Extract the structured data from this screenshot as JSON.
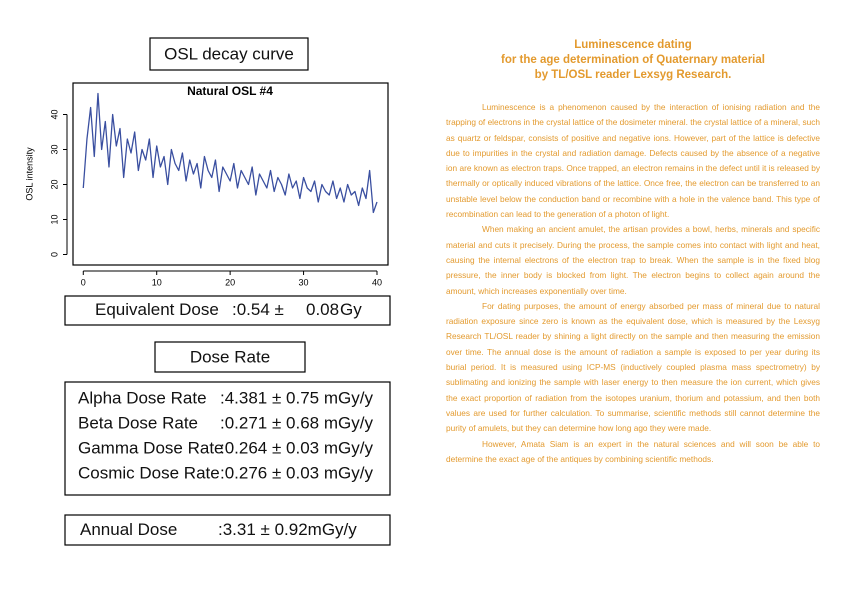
{
  "chart_data": {
    "type": "line",
    "title": "Natural OSL #4",
    "y_label": "OSL intensity",
    "color": "#3a4fa0",
    "x": [
      0,
      0.5,
      1,
      1.5,
      2,
      2.5,
      3,
      3.5,
      4,
      4.5,
      5,
      5.5,
      6,
      6.5,
      7,
      7.5,
      8,
      8.5,
      9,
      9.5,
      10,
      10.5,
      11,
      11.5,
      12,
      12.5,
      13,
      13.5,
      14,
      14.5,
      15,
      15.5,
      16,
      16.5,
      17,
      17.5,
      18,
      18.5,
      19,
      19.5,
      20,
      20.5,
      21,
      21.5,
      22,
      22.5,
      23,
      23.5,
      24,
      24.5,
      25,
      25.5,
      26,
      26.5,
      27,
      27.5,
      28,
      28.5,
      29,
      29.5,
      30,
      30.5,
      31,
      31.5,
      32,
      32.5,
      33,
      33.5,
      34,
      34.5,
      35,
      35.5,
      36,
      36.5,
      37,
      37.5,
      38,
      38.5,
      39,
      39.5,
      40
    ],
    "values": [
      19,
      33,
      42,
      28,
      46,
      30,
      38,
      25,
      40,
      31,
      36,
      22,
      33,
      29,
      35,
      24,
      30,
      27,
      33,
      22,
      31,
      25,
      28,
      20,
      30,
      26,
      24,
      29,
      21,
      27,
      23,
      26,
      19,
      28,
      24,
      22,
      27,
      18,
      25,
      23,
      21,
      26,
      19,
      24,
      22,
      20,
      25,
      17,
      23,
      21,
      19,
      24,
      18,
      22,
      20,
      17,
      23,
      19,
      21,
      16,
      22,
      19,
      18,
      21,
      15,
      20,
      18,
      17,
      21,
      16,
      19,
      15,
      20,
      17,
      18,
      14,
      19,
      16,
      24,
      12,
      15
    ],
    "xlim": [
      -1.4,
      41.5
    ],
    "ylim": [
      -3,
      49
    ],
    "xticks": [
      0,
      10,
      20,
      30,
      40
    ],
    "yticks": [
      0,
      10,
      20,
      30,
      40
    ]
  },
  "left": {
    "curve_title": "OSL decay curve",
    "equivalent_dose": {
      "label": "Equivalent Dose",
      "value": ":0.54 ± ",
      "error": "0.08",
      "unit": "Gy"
    },
    "dose_rate_title": "Dose Rate",
    "dose_rates": [
      {
        "label": "Alpha Dose Rate",
        "value": ":4.381 ± 0.75 mGy/y"
      },
      {
        "label": "Beta Dose Rate",
        "value": ":0.271 ± 0.68 mGy/y"
      },
      {
        "label": "Gamma Dose Rate",
        "value": ":0.264 ± 0.03 mGy/y"
      },
      {
        "label": "Cosmic Dose Rate",
        "value": ":0.276 ± 0.03  mGy/y"
      }
    ],
    "annual_dose": {
      "label": "Annual Dose",
      "value": ":3.31 ± 0.92mGy/y"
    }
  },
  "right": {
    "heading": [
      "Luminescence dating",
      "for the age determination of Quaternary material",
      "by TL/OSL reader Lexsyg Research."
    ],
    "paragraphs": [
      "Luminescence is a phenomenon caused by the interaction of ionising radiation and the trapping of electrons in the crystal lattice of the dosimeter mineral. the crystal lattice of a mineral, such as quartz or feldspar, consists of positive and negative ions. However, part of the lattice is defective due to impurities in the crystal and radiation damage. Defects caused by the absence of a negative ion are known as electron traps. Once trapped, an electron remains in the defect until it is released by thermally or optically induced vibrations of the lattice. Once free, the electron can be transferred to an unstable level below the conduction band or recombine with a hole in the valence band. This type of recombination can lead to the generation of a photon of light.",
      "When making an ancient amulet, the artisan provides a bowl, herbs, minerals and specific material and cuts it precisely. During the process, the sample comes into contact with light and heat, causing the internal electrons of the electron trap to break. When the sample is in the fixed blog pressure, the inner body is blocked from light. The electron begins to collect again around the amount, which increases exponentially over time.",
      "For dating purposes, the amount of energy absorbed per mass of mineral due to natural radiation exposure since zero is known as the equivalent dose, which is measured by the Lexsyg Research TL/OSL reader by shining a light directly on the sample and then measuring the emission over time. The annual dose is the amount of radiation a sample is exposed to per year during its burial period. It is measured using ICP-MS (inductively coupled plasma mass spectrometry) by sublimating and ionizing the sample with laser energy to then measure the ion current, which gives the exact proportion of radiation from the isotopes uranium, thorium and potassium, and then both values are used for further calculation. To summarise, scientific methods still cannot determine the purity of amulets, but they can determine how long ago they were made.",
      "However, Amata Siam is an expert in the natural sciences and will soon be able to determine the exact age of the antiques by combining scientific methods."
    ]
  }
}
